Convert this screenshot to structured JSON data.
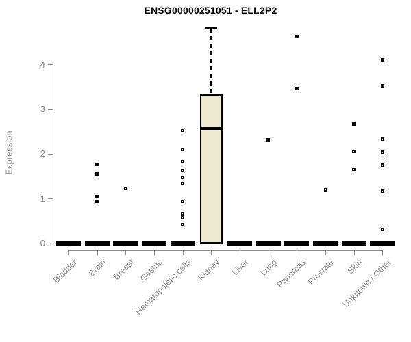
{
  "chart_data": {
    "type": "boxplot",
    "title": "ENSG00000251051 - ELL2P2",
    "ylabel": "Expression",
    "xlabel": "",
    "yticks": [
      0,
      1,
      2,
      3,
      4
    ],
    "ylim": [
      0,
      4.85
    ],
    "grid": false,
    "legend": "none",
    "categories": [
      "Bladder",
      "Brain",
      "Breast",
      "Gastric",
      "Hematopoietic cells",
      "Kidney",
      "Liver",
      "Lung",
      "Pancreas",
      "Prostate",
      "Skin",
      "Unknown / Other"
    ],
    "boxes": [
      {
        "category": "Bladder",
        "q1": 0,
        "median": 0,
        "q3": 0,
        "whisker_low": 0,
        "whisker_high": 0,
        "outliers": []
      },
      {
        "category": "Brain",
        "q1": 0,
        "median": 0,
        "q3": 0,
        "whisker_low": 0,
        "whisker_high": 0,
        "outliers": [
          1.76,
          1.55,
          1.05,
          0.93
        ]
      },
      {
        "category": "Breast",
        "q1": 0,
        "median": 0,
        "q3": 0,
        "whisker_low": 0,
        "whisker_high": 0,
        "outliers": [
          1.22
        ]
      },
      {
        "category": "Gastric",
        "q1": 0,
        "median": 0,
        "q3": 0,
        "whisker_low": 0,
        "whisker_high": 0,
        "outliers": []
      },
      {
        "category": "Hematopoietic cells",
        "q1": 0,
        "median": 0,
        "q3": 0,
        "whisker_low": 0,
        "whisker_high": 0,
        "outliers": [
          2.52,
          2.1,
          1.82,
          1.62,
          1.47,
          1.33,
          0.93,
          0.66,
          0.59,
          0.41
        ]
      },
      {
        "category": "Kidney",
        "q1": 0,
        "median": 2.58,
        "q3": 3.33,
        "whisker_low": 0,
        "whisker_high": 4.8,
        "outliers": []
      },
      {
        "category": "Liver",
        "q1": 0,
        "median": 0,
        "q3": 0,
        "whisker_low": 0,
        "whisker_high": 0,
        "outliers": []
      },
      {
        "category": "Lung",
        "q1": 0,
        "median": 0,
        "q3": 0,
        "whisker_low": 0,
        "whisker_high": 0,
        "outliers": [
          2.32
        ]
      },
      {
        "category": "Pancreas",
        "q1": 0,
        "median": 0,
        "q3": 0,
        "whisker_low": 0,
        "whisker_high": 0,
        "outliers": [
          4.63,
          3.46
        ]
      },
      {
        "category": "Prostate",
        "q1": 0,
        "median": 0,
        "q3": 0,
        "whisker_low": 0,
        "whisker_high": 0,
        "outliers": [
          1.19
        ]
      },
      {
        "category": "Skin",
        "q1": 0,
        "median": 0,
        "q3": 0,
        "whisker_low": 0,
        "whisker_high": 0,
        "outliers": [
          2.67,
          2.05,
          1.66
        ]
      },
      {
        "category": "Unknown / Other",
        "q1": 0,
        "median": 0,
        "q3": 0,
        "whisker_low": 0,
        "whisker_high": 0,
        "outliers": [
          4.1,
          3.52,
          2.33,
          2.04,
          1.74,
          1.17,
          0.31
        ]
      }
    ],
    "colors": {
      "box_fill": "#EDE8CE",
      "box_border": "#000000",
      "median": "#000000",
      "points": "#000000",
      "zero_bar": "#000000",
      "axis": "#8A8A8A",
      "tick_labels": "#8A8A8A",
      "title": "#000000",
      "background": "#FFFFFF"
    }
  }
}
